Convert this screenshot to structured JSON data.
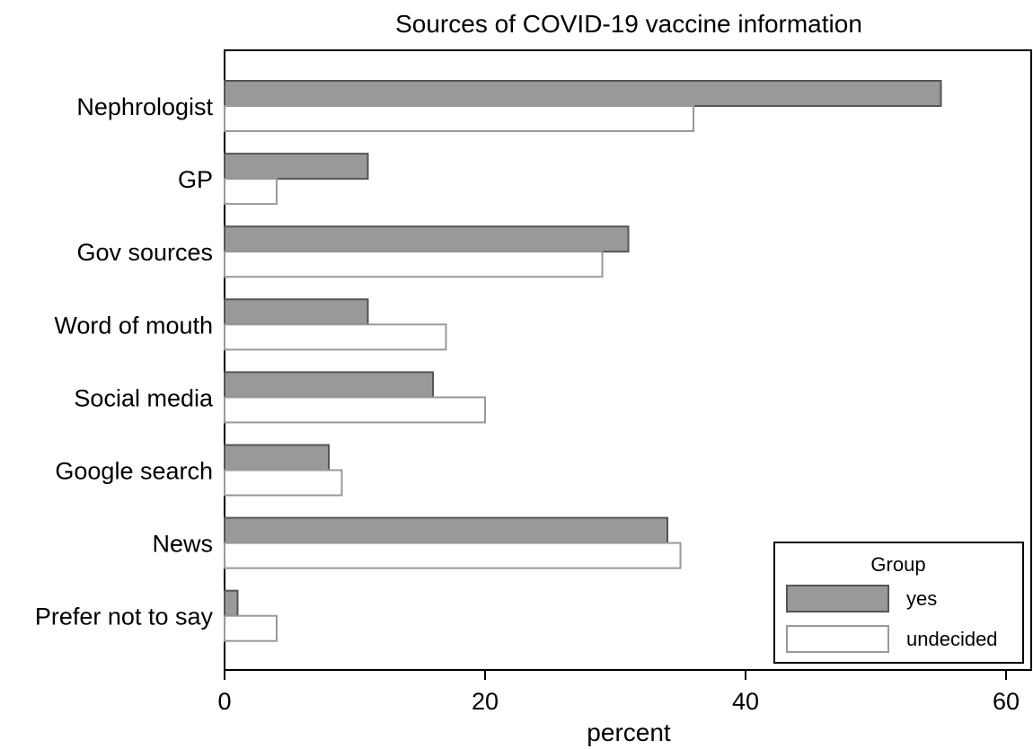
{
  "chart_data": {
    "type": "bar",
    "orientation": "horizontal",
    "title": "Sources of COVID-19 vaccine information",
    "xlabel": "percent",
    "ylabel": "",
    "xlim": [
      0,
      62
    ],
    "xticks": [
      0,
      20,
      40,
      60
    ],
    "grid": false,
    "categories": [
      "Nephrologist",
      "GP",
      "Gov sources",
      "Word of mouth",
      "Social media",
      "Google search",
      "News",
      "Prefer not to say"
    ],
    "series": [
      {
        "name": "yes",
        "values": [
          55,
          11,
          31,
          11,
          16,
          8,
          34,
          1
        ],
        "color": "#999999",
        "stroke": "#555555"
      },
      {
        "name": "undecided",
        "values": [
          36,
          4,
          29,
          17,
          20,
          9,
          35,
          4
        ],
        "color": "#ffffff",
        "stroke": "#999999"
      }
    ],
    "legend": {
      "title": "Group",
      "position": "bottom-right"
    }
  }
}
